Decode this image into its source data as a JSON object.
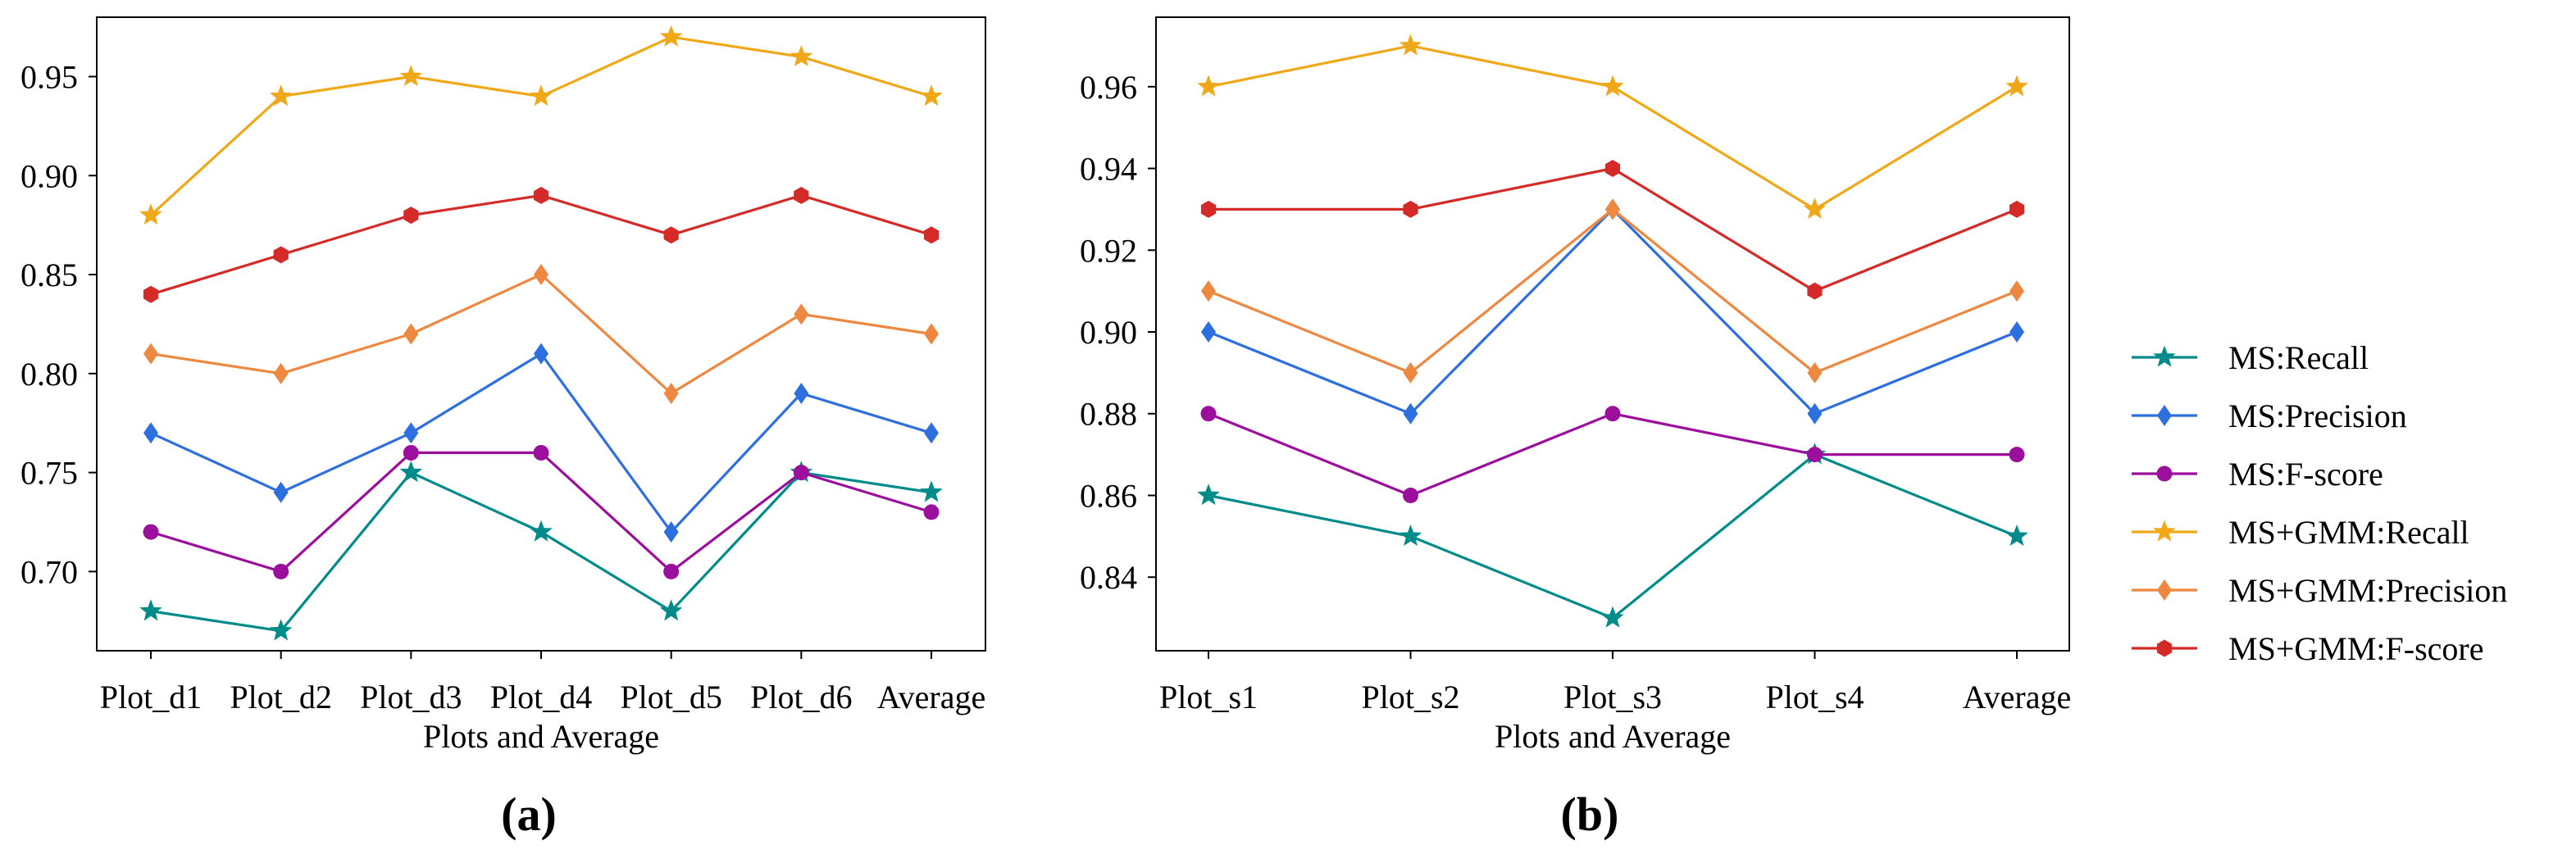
{
  "colors": {
    "MS:Recall": "#008b8b",
    "MS:Precision": "#2e6fe0",
    "MS:F-score": "#9c0f9c",
    "MS+GMM:Recall": "#f0a818",
    "MS+GMM:Precision": "#ee8840",
    "MS+GMM:F-score": "#d42a28"
  },
  "markers": {
    "MS:Recall": "star",
    "MS:Precision": "diamond",
    "MS:F-score": "circle",
    "MS+GMM:Recall": "star",
    "MS+GMM:Precision": "diamond",
    "MS+GMM:F-score": "hexagon"
  },
  "legend": {
    "position": "right",
    "entries": [
      "MS:Recall",
      "MS:Precision",
      "MS:F-score",
      "MS+GMM:Recall",
      "MS+GMM:Precision",
      "MS+GMM:F-score"
    ]
  },
  "chart_data": [
    {
      "type": "line",
      "panel_label": "(a)",
      "xlabel": "Plots and Average",
      "ylabel": "",
      "categories": [
        "Plot_d1",
        "Plot_d2",
        "Plot_d3",
        "Plot_d4",
        "Plot_d5",
        "Plot_d6",
        "Average"
      ],
      "ylim": [
        0.66,
        0.98
      ],
      "yticks": [
        0.7,
        0.75,
        0.8,
        0.85,
        0.9,
        0.95
      ],
      "ytick_labels": [
        "0.70",
        "0.75",
        "0.80",
        "0.85",
        "0.90",
        "0.95"
      ],
      "series": [
        {
          "name": "MS:Recall",
          "values": [
            0.68,
            0.67,
            0.75,
            0.72,
            0.68,
            0.75,
            0.74
          ]
        },
        {
          "name": "MS:Precision",
          "values": [
            0.77,
            0.74,
            0.77,
            0.81,
            0.72,
            0.79,
            0.77
          ]
        },
        {
          "name": "MS:F-score",
          "values": [
            0.72,
            0.7,
            0.76,
            0.76,
            0.7,
            0.75,
            0.73
          ]
        },
        {
          "name": "MS+GMM:Recall",
          "values": [
            0.88,
            0.94,
            0.95,
            0.94,
            0.97,
            0.96,
            0.94
          ]
        },
        {
          "name": "MS+GMM:Precision",
          "values": [
            0.81,
            0.8,
            0.82,
            0.85,
            0.79,
            0.83,
            0.82
          ]
        },
        {
          "name": "MS+GMM:F-score",
          "values": [
            0.84,
            0.86,
            0.88,
            0.89,
            0.87,
            0.89,
            0.87
          ]
        }
      ]
    },
    {
      "type": "line",
      "panel_label": "(b)",
      "xlabel": "Plots and Average",
      "ylabel": "",
      "categories": [
        "Plot_s1",
        "Plot_s2",
        "Plot_s3",
        "Plot_s4",
        "Average"
      ],
      "ylim": [
        0.822,
        0.977
      ],
      "yticks": [
        0.84,
        0.86,
        0.88,
        0.9,
        0.92,
        0.94,
        0.96
      ],
      "ytick_labels": [
        "0.84",
        "0.86",
        "0.88",
        "0.90",
        "0.92",
        "0.94",
        "0.96"
      ],
      "series": [
        {
          "name": "MS:Recall",
          "values": [
            0.86,
            0.85,
            0.83,
            0.87,
            0.85
          ]
        },
        {
          "name": "MS:Precision",
          "values": [
            0.9,
            0.88,
            0.93,
            0.88,
            0.9
          ]
        },
        {
          "name": "MS:F-score",
          "values": [
            0.88,
            0.86,
            0.88,
            0.87,
            0.87
          ]
        },
        {
          "name": "MS+GMM:Recall",
          "values": [
            0.96,
            0.97,
            0.96,
            0.93,
            0.96
          ]
        },
        {
          "name": "MS+GMM:Precision",
          "values": [
            0.91,
            0.89,
            0.93,
            0.89,
            0.91
          ]
        },
        {
          "name": "MS+GMM:F-score",
          "values": [
            0.93,
            0.93,
            0.94,
            0.91,
            0.93
          ]
        }
      ]
    }
  ]
}
